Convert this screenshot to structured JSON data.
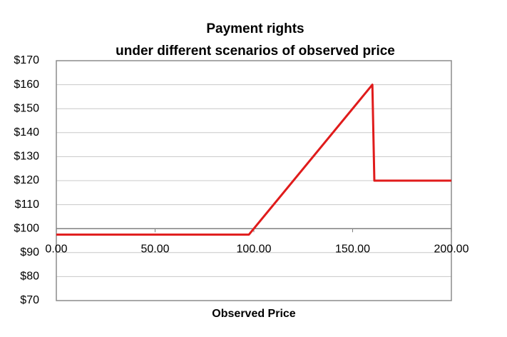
{
  "chart_data": {
    "type": "line",
    "title": [
      "Payment rights",
      "under different scenarios of observed price"
    ],
    "x_label": "Observed Price",
    "x": [
      0,
      97.5,
      160,
      161,
      200
    ],
    "series": [
      {
        "name": "Payment rights",
        "color": "#e01b1b",
        "values": [
          97.5,
          97.5,
          160,
          120,
          120
        ]
      }
    ],
    "xlim": [
      0,
      200
    ],
    "xticks": [
      {
        "value": 0,
        "label": "0.00"
      },
      {
        "value": 50,
        "label": "50.00"
      },
      {
        "value": 100,
        "label": "100.00"
      },
      {
        "value": 150,
        "label": "150.00"
      },
      {
        "value": 200,
        "label": "200.00"
      }
    ],
    "ylim": [
      70,
      170
    ],
    "yticks": [
      {
        "value": 70,
        "label": "$70"
      },
      {
        "value": 80,
        "label": "$80"
      },
      {
        "value": 90,
        "label": "$90"
      },
      {
        "value": 100,
        "label": "$100"
      },
      {
        "value": 110,
        "label": "$110"
      },
      {
        "value": 120,
        "label": "$120"
      },
      {
        "value": 130,
        "label": "$130"
      },
      {
        "value": 140,
        "label": "$140"
      },
      {
        "value": 150,
        "label": "$150"
      },
      {
        "value": 160,
        "label": "$160"
      },
      {
        "value": 170,
        "label": "$170"
      }
    ],
    "x_axis_crosses_at": 100,
    "grid": true
  }
}
